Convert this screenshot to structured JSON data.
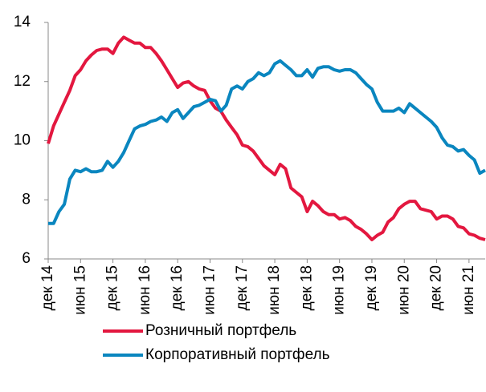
{
  "chart_data": {
    "type": "line",
    "categories": [
      "дек 14",
      null,
      null,
      null,
      null,
      null,
      "июн 15",
      null,
      null,
      null,
      null,
      null,
      "дек 15",
      null,
      null,
      null,
      null,
      null,
      "июн 16",
      null,
      null,
      null,
      null,
      null,
      "дек 16",
      null,
      null,
      null,
      null,
      null,
      "июн 17",
      null,
      null,
      null,
      null,
      null,
      "дек 17",
      null,
      null,
      null,
      null,
      null,
      "июн 18",
      null,
      null,
      null,
      null,
      null,
      "дек 18",
      null,
      null,
      null,
      null,
      null,
      "июн 19",
      null,
      null,
      null,
      null,
      null,
      "дек 19",
      null,
      null,
      null,
      null,
      null,
      "июн 20",
      null,
      null,
      null,
      null,
      null,
      "дек 20",
      null,
      null,
      null,
      null,
      null,
      "июн 21",
      null,
      null,
      null
    ],
    "series": [
      {
        "name": "Розничный портфель",
        "color": "#e3173f",
        "values": [
          9.9,
          10.5,
          10.9,
          11.3,
          11.7,
          12.2,
          12.4,
          12.7,
          12.9,
          13.05,
          13.1,
          13.1,
          12.95,
          13.3,
          13.5,
          13.4,
          13.3,
          13.3,
          13.15,
          13.15,
          12.95,
          12.7,
          12.4,
          12.1,
          11.8,
          11.95,
          12.0,
          11.85,
          11.75,
          11.7,
          11.35,
          11.1,
          11.0,
          10.7,
          10.45,
          10.2,
          9.85,
          9.8,
          9.65,
          9.4,
          9.15,
          9.0,
          8.85,
          9.2,
          9.05,
          8.4,
          8.25,
          8.1,
          7.6,
          7.95,
          7.8,
          7.6,
          7.5,
          7.5,
          7.35,
          7.4,
          7.3,
          7.1,
          7.0,
          6.85,
          6.65,
          6.8,
          6.9,
          7.25,
          7.4,
          7.7,
          7.85,
          7.95,
          7.95,
          7.7,
          7.65,
          7.6,
          7.35,
          7.45,
          7.45,
          7.35,
          7.1,
          7.05,
          6.85,
          6.8,
          6.7,
          6.65
        ]
      },
      {
        "name": "Корпоративный портфель",
        "color": "#0a86bf",
        "values": [
          7.2,
          7.2,
          7.6,
          7.85,
          8.7,
          9.0,
          8.95,
          9.05,
          8.95,
          8.95,
          9.0,
          9.3,
          9.1,
          9.3,
          9.6,
          10.0,
          10.4,
          10.5,
          10.55,
          10.65,
          10.7,
          10.8,
          10.65,
          10.95,
          11.05,
          10.75,
          10.95,
          11.15,
          11.2,
          11.3,
          11.4,
          11.35,
          11.0,
          11.2,
          11.75,
          11.85,
          11.75,
          12.0,
          12.1,
          12.3,
          12.2,
          12.3,
          12.6,
          12.7,
          12.55,
          12.4,
          12.2,
          12.2,
          12.4,
          12.15,
          12.45,
          12.5,
          12.5,
          12.4,
          12.35,
          12.4,
          12.4,
          12.3,
          12.1,
          11.9,
          11.75,
          11.3,
          11.0,
          11.0,
          11.0,
          11.1,
          10.95,
          11.25,
          11.1,
          10.95,
          10.8,
          10.65,
          10.45,
          10.1,
          9.85,
          9.8,
          9.65,
          9.7,
          9.5,
          9.35,
          8.9,
          9.0
        ]
      }
    ],
    "ylim": [
      6,
      14
    ],
    "yticks": [
      6,
      8,
      10,
      12,
      14
    ]
  }
}
